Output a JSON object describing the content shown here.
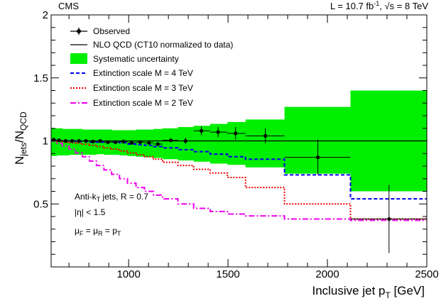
{
  "header": {
    "experiment": "CMS",
    "lumi_prefix": "L = 10.7 fb",
    "lumi_sup": "-1",
    "lumi_sqrt": "√s",
    "lumi_suffix": " = 8 TeV"
  },
  "legend": {
    "observed": "Observed",
    "nlo": "NLO QCD (CT10 normalized to data)",
    "syst": "Systematic uncertainty",
    "m4": "Extinction scale M = 4 TeV",
    "m3": "Extinction scale M = 3 TeV",
    "m2": "Extinction scale M = 2 TeV"
  },
  "annotations": {
    "algo_prefix": "Anti-k",
    "algo_sub": "T",
    "algo_suffix": " jets, R = 0.7",
    "eta": "|η| < 1.5",
    "scale_mu1": "μ",
    "scale_sub1": "F",
    "scale_mid": " = μ",
    "scale_sub2": "R",
    "scale_mid2": " = p",
    "scale_sub3": "T"
  },
  "axes": {
    "xlabel_main": "Inclusive jet p",
    "xlabel_sub": "T",
    "xlabel_unit": " [GeV]",
    "ylabel_main1": "N",
    "ylabel_sub1": "jets",
    "ylabel_mid": "/N",
    "ylabel_sub2": "QCD"
  },
  "colors": {
    "syst": "#00ee00",
    "m4": "#0000ee",
    "m3": "#ee0000",
    "m2": "#ee00ee",
    "observed": "#000000",
    "nlo": "#000000"
  },
  "chart_data": {
    "type": "line",
    "xlim": [
      610,
      2500
    ],
    "ylim": [
      0,
      2
    ],
    "x_ticks": [
      1000,
      1500,
      2000,
      2500
    ],
    "y_ticks": [
      0.5,
      1,
      1.5,
      2
    ],
    "xlabel": "Inclusive jet p_T [GeV]",
    "ylabel": "N_jets/N_QCD",
    "grid": false,
    "legend_position": "top-left",
    "observed": {
      "x": [
        623,
        650,
        683,
        716,
        750,
        785,
        820,
        857,
        895,
        934,
        974,
        1015,
        1058,
        1102,
        1147,
        1212,
        1286,
        1366,
        1450,
        1538,
        1688,
        1952,
        2310
      ],
      "y": [
        1.01,
        1.005,
        1.0,
        1.0,
        1.0,
        1.0,
        0.995,
        1.0,
        0.99,
        0.99,
        0.995,
        0.985,
        0.99,
        0.985,
        0.975,
        1.005,
        1.0,
        1.08,
        1.07,
        1.06,
        1.04,
        0.87,
        0.38
      ],
      "yerr": [
        0.01,
        0.01,
        0.01,
        0.01,
        0.01,
        0.01,
        0.01,
        0.01,
        0.01,
        0.01,
        0.01,
        0.01,
        0.01,
        0.01,
        0.015,
        0.015,
        0.025,
        0.035,
        0.04,
        0.05,
        0.06,
        0.14,
        0.27
      ],
      "x_lo": [
        610,
        638,
        666,
        700,
        733,
        767,
        803,
        838,
        876,
        914,
        954,
        994,
        1037,
        1080,
        1125,
        1171,
        1248,
        1327,
        1410,
        1497,
        1588,
        1784,
        2116
      ],
      "x_hi": [
        638,
        666,
        700,
        733,
        767,
        803,
        838,
        876,
        914,
        954,
        994,
        1037,
        1080,
        1125,
        1171,
        1248,
        1327,
        1410,
        1497,
        1588,
        1784,
        2116,
        2500
      ]
    },
    "nlo_qcd": {
      "x": [
        610,
        2500
      ],
      "y": [
        1.0,
        1.0
      ]
    },
    "systematic_band": {
      "edges": [
        610,
        638,
        666,
        700,
        733,
        767,
        803,
        838,
        876,
        914,
        954,
        994,
        1037,
        1080,
        1125,
        1171,
        1248,
        1327,
        1410,
        1497,
        1588,
        1784,
        2116,
        2500
      ],
      "low": [
        0.88,
        0.885,
        0.885,
        0.89,
        0.89,
        0.89,
        0.89,
        0.895,
        0.89,
        0.89,
        0.885,
        0.88,
        0.875,
        0.87,
        0.865,
        0.855,
        0.845,
        0.835,
        0.82,
        0.81,
        0.79,
        0.74,
        0.6
      ],
      "high": [
        1.1,
        1.1,
        1.095,
        1.095,
        1.095,
        1.09,
        1.09,
        1.09,
        1.09,
        1.085,
        1.085,
        1.085,
        1.09,
        1.09,
        1.095,
        1.1,
        1.11,
        1.12,
        1.135,
        1.15,
        1.17,
        1.27,
        1.4
      ]
    },
    "series": [
      {
        "name": "Extinction scale M = 4 TeV",
        "edges": [
          610,
          638,
          666,
          700,
          733,
          767,
          803,
          838,
          876,
          914,
          954,
          994,
          1037,
          1080,
          1125,
          1171,
          1248,
          1327,
          1410,
          1497,
          1588,
          1784,
          2116,
          2500
        ],
        "values": [
          1.0,
          1.0,
          1.0,
          1.0,
          0.995,
          0.995,
          0.99,
          0.99,
          0.99,
          0.99,
          0.985,
          0.975,
          0.97,
          0.965,
          0.955,
          0.945,
          0.93,
          0.915,
          0.895,
          0.875,
          0.855,
          0.73,
          0.54
        ]
      },
      {
        "name": "Extinction scale M = 3 TeV",
        "edges": [
          610,
          638,
          666,
          700,
          733,
          767,
          803,
          838,
          876,
          914,
          954,
          994,
          1037,
          1080,
          1125,
          1171,
          1248,
          1327,
          1410,
          1497,
          1588,
          1784,
          2116,
          2500
        ],
        "values": [
          1.0,
          0.995,
          0.99,
          0.985,
          0.98,
          0.975,
          0.965,
          0.955,
          0.945,
          0.935,
          0.92,
          0.905,
          0.89,
          0.875,
          0.855,
          0.83,
          0.805,
          0.775,
          0.745,
          0.71,
          0.63,
          0.5,
          0.38
        ]
      },
      {
        "name": "Extinction scale M = 2 TeV",
        "edges": [
          610,
          638,
          666,
          700,
          733,
          767,
          803,
          838,
          876,
          914,
          954,
          994,
          1037,
          1080,
          1125,
          1171,
          1248,
          1327,
          1410,
          1497,
          1588,
          1784,
          2116,
          2500
        ],
        "values": [
          1.0,
          0.98,
          0.96,
          0.935,
          0.905,
          0.875,
          0.84,
          0.805,
          0.77,
          0.735,
          0.7,
          0.665,
          0.63,
          0.6,
          0.57,
          0.54,
          0.5,
          0.465,
          0.44,
          0.42,
          0.405,
          0.38,
          0.37
        ]
      }
    ]
  }
}
